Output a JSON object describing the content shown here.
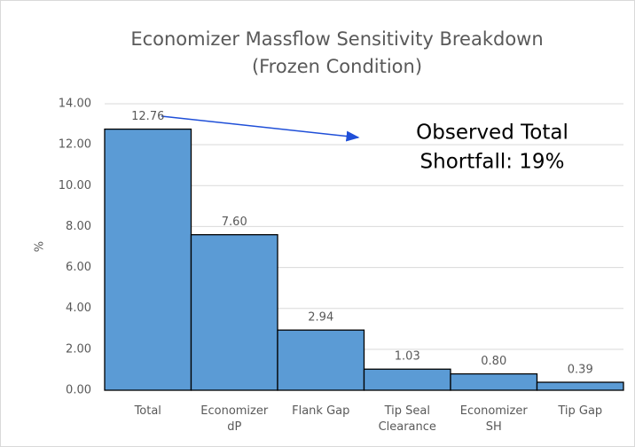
{
  "chart_data": {
    "type": "bar",
    "title": "Economizer Massflow Sensitivity Breakdown",
    "subtitle": "(Frozen Condition)",
    "y_label": "%",
    "categories": [
      "Total",
      "Economizer dP",
      "Flank Gap",
      "Tip Seal Clearance",
      "Economizer SH",
      "Tip Gap"
    ],
    "values": [
      12.76,
      7.6,
      2.94,
      1.03,
      0.8,
      0.39
    ],
    "value_labels": [
      "12.76",
      "7.60",
      "2.94",
      "1.03",
      "0.80",
      "0.39"
    ],
    "color": "#5b9bd5",
    "ylim": [
      0,
      14
    ],
    "yticks": [
      {
        "value": 0,
        "label": "0.00"
      },
      {
        "value": 2,
        "label": "2.00"
      },
      {
        "value": 4,
        "label": "4.00"
      },
      {
        "value": 6,
        "label": "6.00"
      },
      {
        "value": 8,
        "label": "8.00"
      },
      {
        "value": 10,
        "label": "10.00"
      },
      {
        "value": 12,
        "label": "12.00"
      },
      {
        "value": 14,
        "label": "14.00"
      }
    ],
    "grid": true,
    "annotation": [
      "Observed Total",
      "Shortfall: 19%"
    ]
  }
}
